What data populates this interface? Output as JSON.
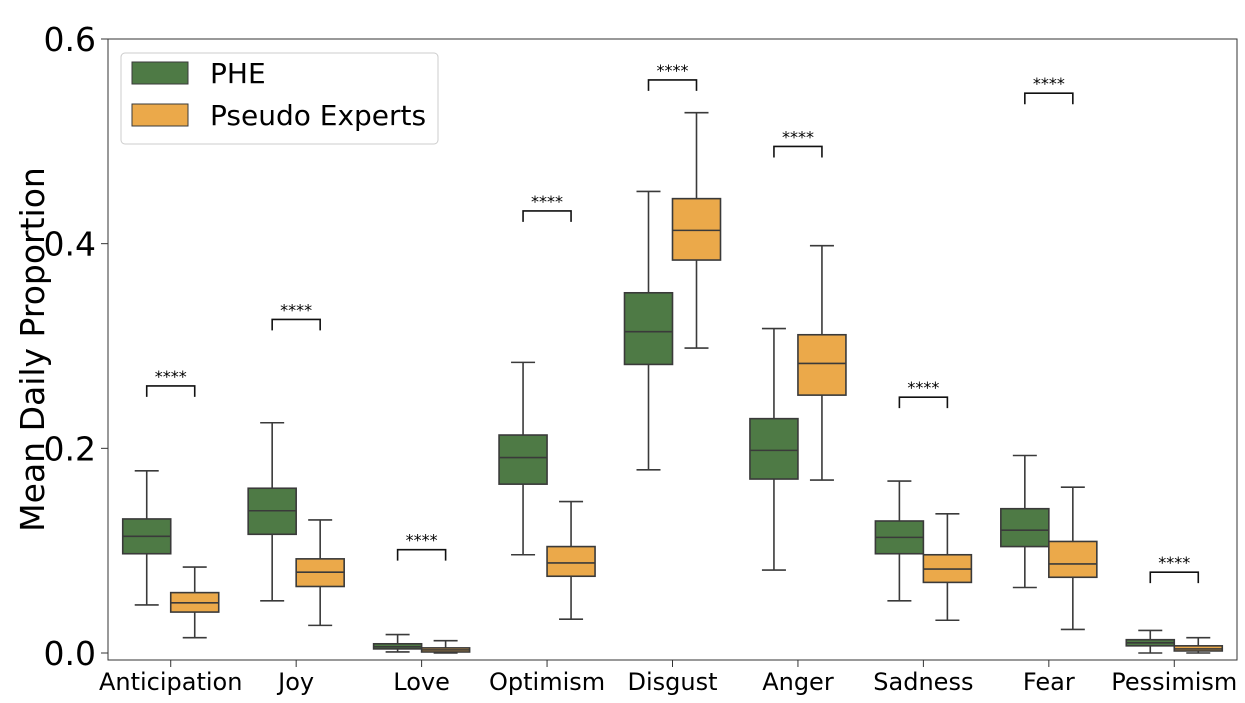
{
  "chart_data": {
    "type": "boxplot",
    "title": "",
    "xlabel": "",
    "ylabel": "Mean Daily Proportion",
    "ylim": [
      -0.008,
      0.6
    ],
    "yticks": [
      "0.0",
      "0.2",
      "0.4",
      "0.6"
    ],
    "ytick_values": [
      0.0,
      0.2,
      0.4,
      0.6
    ],
    "grid": false,
    "legend_position": "top-left",
    "categories": [
      "Anticipation",
      "Joy",
      "Love",
      "Optimism",
      "Disgust",
      "Anger",
      "Sadness",
      "Fear",
      "Pessimism"
    ],
    "series": [
      {
        "name": "PHE",
        "color": "#4e7a45",
        "boxes": [
          {
            "min": 0.047,
            "q1": 0.097,
            "median": 0.114,
            "q3": 0.131,
            "max": 0.178
          },
          {
            "min": 0.051,
            "q1": 0.116,
            "median": 0.139,
            "q3": 0.161,
            "max": 0.225
          },
          {
            "min": 0.001,
            "q1": 0.004,
            "median": 0.006,
            "q3": 0.009,
            "max": 0.018
          },
          {
            "min": 0.096,
            "q1": 0.165,
            "median": 0.191,
            "q3": 0.213,
            "max": 0.284
          },
          {
            "min": 0.179,
            "q1": 0.282,
            "median": 0.314,
            "q3": 0.352,
            "max": 0.451
          },
          {
            "min": 0.081,
            "q1": 0.17,
            "median": 0.198,
            "q3": 0.229,
            "max": 0.317
          },
          {
            "min": 0.051,
            "q1": 0.097,
            "median": 0.113,
            "q3": 0.129,
            "max": 0.168
          },
          {
            "min": 0.064,
            "q1": 0.104,
            "median": 0.12,
            "q3": 0.141,
            "max": 0.193
          },
          {
            "min": 0.0,
            "q1": 0.007,
            "median": 0.01,
            "q3": 0.013,
            "max": 0.022
          }
        ]
      },
      {
        "name": "Pseudo Experts",
        "color": "#eba94a",
        "boxes": [
          {
            "min": 0.015,
            "q1": 0.04,
            "median": 0.049,
            "q3": 0.059,
            "max": 0.084
          },
          {
            "min": 0.027,
            "q1": 0.065,
            "median": 0.079,
            "q3": 0.092,
            "max": 0.13
          },
          {
            "min": 0.0,
            "q1": 0.001,
            "median": 0.003,
            "q3": 0.005,
            "max": 0.012
          },
          {
            "min": 0.033,
            "q1": 0.075,
            "median": 0.088,
            "q3": 0.104,
            "max": 0.148
          },
          {
            "min": 0.298,
            "q1": 0.384,
            "median": 0.413,
            "q3": 0.444,
            "max": 0.528
          },
          {
            "min": 0.169,
            "q1": 0.252,
            "median": 0.283,
            "q3": 0.311,
            "max": 0.398
          },
          {
            "min": 0.032,
            "q1": 0.069,
            "median": 0.082,
            "q3": 0.096,
            "max": 0.136
          },
          {
            "min": 0.023,
            "q1": 0.074,
            "median": 0.087,
            "q3": 0.109,
            "max": 0.162
          },
          {
            "min": 0.0,
            "q1": 0.002,
            "median": 0.004,
            "q3": 0.007,
            "max": 0.015
          }
        ]
      }
    ],
    "annotations": [
      {
        "category": "Anticipation",
        "text": "****",
        "y": 0.261
      },
      {
        "category": "Joy",
        "text": "****",
        "y": 0.326
      },
      {
        "category": "Love",
        "text": "****",
        "y": 0.101
      },
      {
        "category": "Optimism",
        "text": "****",
        "y": 0.432
      },
      {
        "category": "Disgust",
        "text": "****",
        "y": 0.56
      },
      {
        "category": "Anger",
        "text": "****",
        "y": 0.495
      },
      {
        "category": "Sadness",
        "text": "****",
        "y": 0.25
      },
      {
        "category": "Fear",
        "text": "****",
        "y": 0.547
      },
      {
        "category": "Pessimism",
        "text": "****",
        "y": 0.079
      }
    ]
  }
}
